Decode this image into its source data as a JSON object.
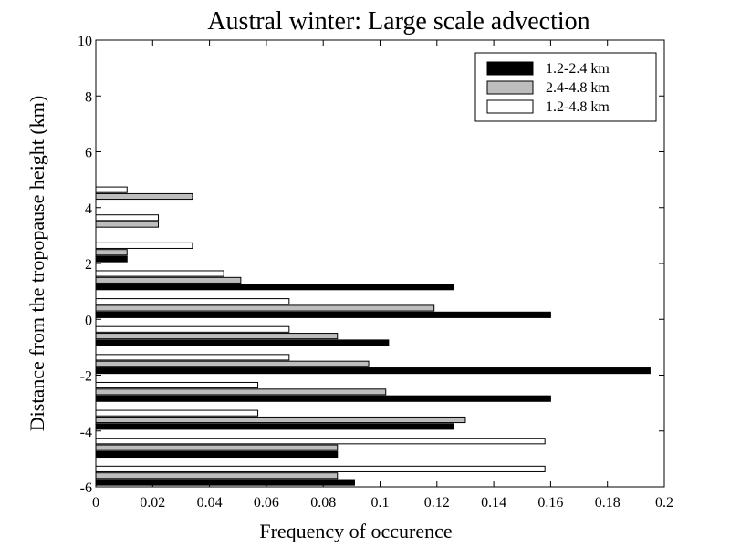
{
  "chart_data": {
    "type": "bar",
    "orientation": "horizontal",
    "title": "Austral winter: Large scale advection",
    "xlabel": "Frequency of occurence",
    "ylabel": "Distance from the tropopause height (km)",
    "xlim": [
      0,
      0.2
    ],
    "ylim": [
      -6,
      10
    ],
    "xticks": [
      "0",
      "0.02",
      "0.04",
      "0.06",
      "0.08",
      "0.1",
      "0.12",
      "0.14",
      "0.16",
      "0.18",
      "0.2"
    ],
    "yticks": [
      "-6",
      "-4",
      "-2",
      "0",
      "2",
      "4",
      "6",
      "8",
      "10"
    ],
    "categories": [
      -5.5,
      -4.5,
      -3.5,
      -2.5,
      -1.5,
      -0.5,
      0.5,
      1.5,
      2.5,
      3.5,
      4.5
    ],
    "series": [
      {
        "name": "1.2-2.4 km",
        "color": "#000000",
        "values": [
          0.091,
          0.085,
          0.126,
          0.16,
          0.195,
          0.103,
          0.16,
          0.126,
          0.011,
          0,
          0
        ]
      },
      {
        "name": "2.4-4.8 km",
        "color": "#bdbdbd",
        "values": [
          0.085,
          0.085,
          0.13,
          0.102,
          0.096,
          0.085,
          0.119,
          0.051,
          0.011,
          0.022,
          0.034
        ]
      },
      {
        "name": "1.2-4.8 km",
        "color": "#ffffff",
        "values": [
          0.158,
          0.158,
          0.057,
          0.057,
          0.068,
          0.068,
          0.068,
          0.045,
          0.034,
          0.022,
          0.011
        ]
      }
    ],
    "legend": {
      "position": "top-right"
    },
    "grid": false
  }
}
